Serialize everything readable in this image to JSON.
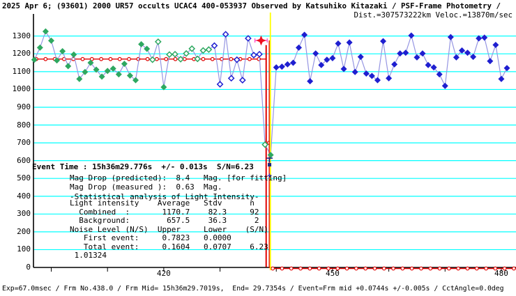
{
  "title": {
    "line1": "2025 Apr 6; (93601) 2000 UR57 occults UCAC4 400-053937 Observed by Katsuhiko Kitazaki / PSF-Frame Photometry /",
    "line2": "Dist.=307573222km Veloc.=13870m/sec"
  },
  "status_bar": "Exp=67.0msec / Frm No.438.0 / Frm Mid= 15h36m29.7019s,  End= 29.7354s / Event=Frm mid +0.0744s +/-0.005s / CctAngle=0.0deg",
  "event_panel": {
    "event_time_line": "Event Time : 15h36m29.776s  +/- 0.013s  S/N=6.23",
    "mag_drop_predicted": "Mag Drop (predicted):  8.4   Mag. [for fitting]",
    "mag_drop_measured": "Mag Drop (measured ):  0.63  Mag.",
    "stat_title": "-Statistical analysis of Light Intensity-",
    "stat_lines": [
      "Light intensity    Average   Stdv      n",
      "  Combined  :       1170.7    82.3     92",
      "  Background:        657.5    36.3      2",
      "Noise Level (N/S)  Upper     Lower    (S/N)",
      "   First event:     0.7823   0.0000",
      "   Total event:     0.1604   0.0707    6.23",
      " 1.01324"
    ]
  },
  "chart_data": {
    "type": "scatter",
    "x_axis": {
      "unit": "frame number",
      "min": 396.5,
      "max": 482.6,
      "ticks": [
        400,
        410,
        420,
        430,
        440,
        450,
        460,
        470,
        480
      ],
      "labeled_ticks": [
        420,
        450,
        480
      ]
    },
    "y_axis": {
      "unit": "light intensity",
      "min": 0,
      "max": 1365,
      "gridline_step": 100,
      "tick_values": [
        0,
        100,
        200,
        300,
        400,
        500,
        600,
        700,
        800,
        900,
        1000,
        1100,
        1200,
        1300
      ]
    },
    "style_legend": {
      "gf": "green-filled-diamond",
      "go": "green-open-diamond",
      "bo": "blue-open-diamond",
      "bf": "blue-filled-diamond"
    },
    "measured_points": [
      [
        397,
        1167,
        "gf"
      ],
      [
        398,
        1235,
        "gf"
      ],
      [
        399,
        1326,
        "gf"
      ],
      [
        400,
        1274,
        "gf"
      ],
      [
        401,
        1163,
        "gf"
      ],
      [
        402,
        1215,
        "gf"
      ],
      [
        403,
        1131,
        "gf"
      ],
      [
        404,
        1196,
        "gf"
      ],
      [
        405,
        1059,
        "gf"
      ],
      [
        406,
        1098,
        "gf"
      ],
      [
        407,
        1150,
        "gf"
      ],
      [
        408,
        1111,
        "gf"
      ],
      [
        409,
        1072,
        "gf"
      ],
      [
        410,
        1104,
        "gf"
      ],
      [
        411,
        1117,
        "gf"
      ],
      [
        412,
        1085,
        "gf"
      ],
      [
        413,
        1144,
        "gf"
      ],
      [
        414,
        1078,
        "gf"
      ],
      [
        415,
        1052,
        "gf"
      ],
      [
        416,
        1254,
        "gf"
      ],
      [
        417,
        1228,
        "gf"
      ],
      [
        418,
        1167,
        "go"
      ],
      [
        419,
        1268,
        "go"
      ],
      [
        420,
        1013,
        "gf"
      ],
      [
        421,
        1196,
        "go"
      ],
      [
        422,
        1198,
        "go"
      ],
      [
        423,
        1170,
        "go"
      ],
      [
        424,
        1202,
        "go"
      ],
      [
        425,
        1229,
        "go"
      ],
      [
        426,
        1172,
        "go"
      ],
      [
        427,
        1219,
        "go"
      ],
      [
        428,
        1224,
        "go"
      ],
      [
        429,
        1246,
        "bo"
      ],
      [
        430,
        1029,
        "bo"
      ],
      [
        431,
        1310,
        "bo"
      ],
      [
        432,
        1063,
        "bo"
      ],
      [
        433,
        1167,
        "bo"
      ],
      [
        434,
        1052,
        "bo"
      ],
      [
        435,
        1287,
        "bo"
      ],
      [
        436,
        1193,
        "bo"
      ],
      [
        437,
        1198,
        "bo"
      ],
      [
        438,
        690,
        "go"
      ],
      [
        439,
        632,
        "gf"
      ],
      [
        440,
        1124,
        "bf"
      ],
      [
        441,
        1128,
        "bf"
      ],
      [
        442,
        1141,
        "bf"
      ],
      [
        443,
        1150,
        "bf"
      ],
      [
        444,
        1235,
        "bf"
      ],
      [
        445,
        1307,
        "bf"
      ],
      [
        446,
        1046,
        "bf"
      ],
      [
        447,
        1202,
        "bf"
      ],
      [
        448,
        1137,
        "bf"
      ],
      [
        449,
        1167,
        "bf"
      ],
      [
        450,
        1176,
        "bf"
      ],
      [
        451,
        1258,
        "bf"
      ],
      [
        452,
        1115,
        "bf"
      ],
      [
        453,
        1264,
        "bf"
      ],
      [
        454,
        1098,
        "bf"
      ],
      [
        455,
        1183,
        "bf"
      ],
      [
        456,
        1089,
        "bf"
      ],
      [
        457,
        1076,
        "bf"
      ],
      [
        458,
        1052,
        "bf"
      ],
      [
        459,
        1271,
        "bf"
      ],
      [
        460,
        1063,
        "bf"
      ],
      [
        461,
        1141,
        "bf"
      ],
      [
        462,
        1202,
        "bf"
      ],
      [
        463,
        1206,
        "bf"
      ],
      [
        464,
        1303,
        "bf"
      ],
      [
        465,
        1180,
        "bf"
      ],
      [
        466,
        1202,
        "bf"
      ],
      [
        467,
        1137,
        "bf"
      ],
      [
        468,
        1124,
        "bf"
      ],
      [
        469,
        1085,
        "bf"
      ],
      [
        470,
        1020,
        "bf"
      ],
      [
        471,
        1294,
        "bf"
      ],
      [
        472,
        1180,
        "bf"
      ],
      [
        473,
        1219,
        "bf"
      ],
      [
        474,
        1206,
        "bf"
      ],
      [
        475,
        1183,
        "bf"
      ],
      [
        476,
        1287,
        "bf"
      ],
      [
        477,
        1291,
        "bf"
      ],
      [
        478,
        1159,
        "bf"
      ],
      [
        479,
        1250,
        "bf"
      ],
      [
        480,
        1059,
        "bf"
      ],
      [
        481,
        1120,
        "bf"
      ]
    ],
    "model": {
      "high_value": 1170.7,
      "low_value": 0,
      "drop_frame": 438.2,
      "low_start_frame": 439.0,
      "transition_circle": {
        "frame": 438.7,
        "value": 700
      }
    },
    "event_lines": {
      "yellow_line_frame": 438.95,
      "red_line_frame": 438.75,
      "model_drop_line_frame": 438.2
    },
    "star_marker": {
      "frame": 437.3,
      "value": 1275,
      "xerr_frames": 1.1
    },
    "event_bar_marker": {
      "frame": 438.8,
      "t_value": 614,
      "square_value": 577,
      "plus_value": 516
    },
    "colors": {
      "grid": "#00ffff",
      "axis": "#000000",
      "model_red": "#e00000",
      "green": "#2ea860",
      "blue": "#1f1fd0",
      "connect_line": "#9595e2",
      "yellow": "#ffff00",
      "magenta": "#ff55c8",
      "navy": "#1a2a80",
      "plus_blue": "#3333cc",
      "star_red": "#ee1020"
    }
  }
}
